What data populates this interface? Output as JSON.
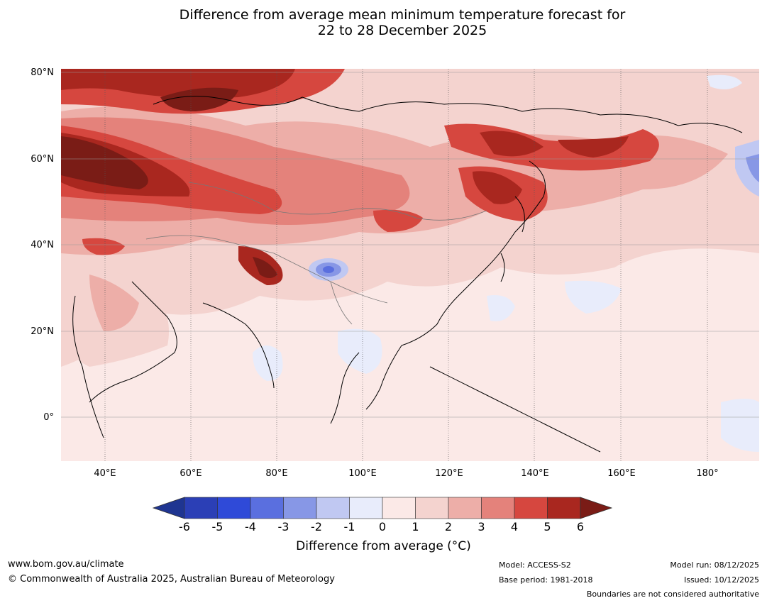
{
  "title_line1": "Difference from average mean minimum temperature forecast for",
  "title_line2": "22 to 28 December 2025",
  "map": {
    "region": "Asia",
    "lat_labels": [
      "80°N",
      "60°N",
      "40°N",
      "20°N",
      "0°"
    ],
    "lon_labels": [
      "40°E",
      "60°E",
      "80°E",
      "100°E",
      "120°E",
      "140°E",
      "160°E",
      "180°"
    ]
  },
  "colorbar": {
    "ticks": [
      "-6",
      "-5",
      "-4",
      "-3",
      "-2",
      "-1",
      "0",
      "1",
      "2",
      "3",
      "4",
      "5",
      "6"
    ],
    "colors": [
      "#1f3591",
      "#2b3fb6",
      "#2f4ad8",
      "#5a6fdf",
      "#8797e6",
      "#c0c8f2",
      "#e8ecfb",
      "#fbe9e7",
      "#f4d3cf",
      "#edaea8",
      "#e4827b",
      "#d6473f",
      "#a9271f",
      "#7a1c16"
    ],
    "label": "Difference from average (°C)"
  },
  "footer": {
    "website": "www.bom.gov.au/climate",
    "copyright": "© Commonwealth of Australia 2025, Australian Bureau of Meteorology",
    "model": "Model: ACCESS-S2",
    "base_period": "Base period: 1981-2018",
    "model_run": "Model run: 08/12/2025",
    "issued": "Issued: 10/12/2025",
    "disclaimer": "Boundaries are not considered authoritative"
  }
}
